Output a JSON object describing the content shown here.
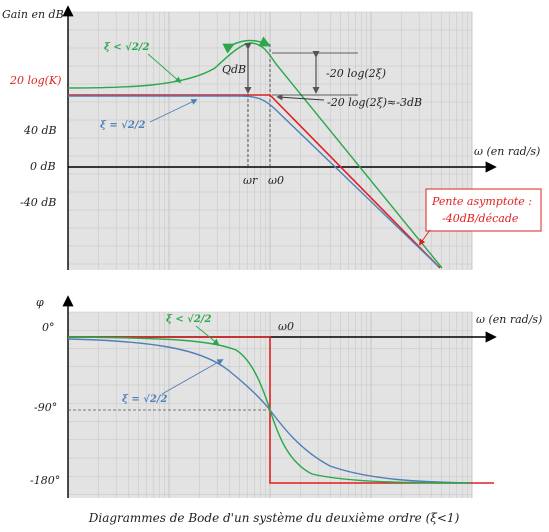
{
  "colors": {
    "grid_bg": "#e3e3e3",
    "grid_line": "#c4c4c4",
    "axis": "#000000",
    "asymptote": "#e02020",
    "low_damping": "#2aa84a",
    "critical_damping": "#4f7fb8",
    "annotation": "#555555"
  },
  "gain_plot": {
    "y_title": "Gain en dB",
    "x_title": "ω (en rad/s)",
    "level_label": "20 log(K)",
    "tick_40": "40 dB",
    "tick_0": "0 dB",
    "tick_m40": "-40 dB",
    "omega_r": "ωr",
    "omega_0": "ω0",
    "q_label": "QdB",
    "ann_peak": "-20 log(2ξ)",
    "ann_3db": "-20 log(2ξ)≈-3dB",
    "asymptote_box_line1": "Pente asymptote :",
    "asymptote_box_line2": "-40dB/décade",
    "xi_less": "ξ < √2/2",
    "xi_equal": "ξ = √2/2"
  },
  "phase_plot": {
    "y_title": "φ",
    "x_title": "ω (en rad/s)",
    "tick_0": "0°",
    "tick_m90": "-90°",
    "tick_m180": "-180°",
    "omega_0": "ω0",
    "xi_less": "ξ < √2/2",
    "xi_equal": "ξ = √2/2"
  },
  "caption": "Diagrammes de Bode d'un système du deuxième ordre (ξ<1)"
}
